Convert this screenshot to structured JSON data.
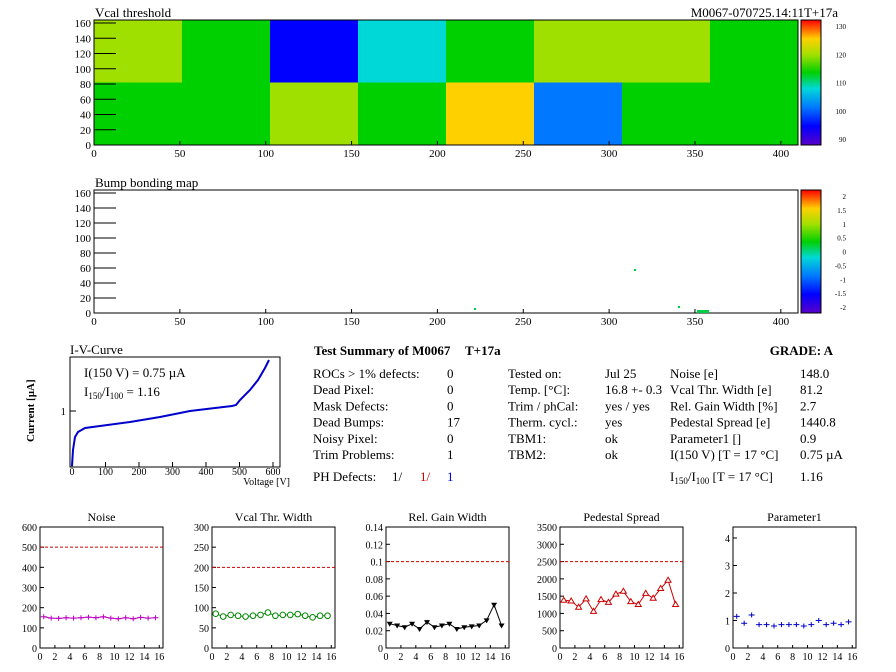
{
  "header": {
    "title": "Vcal threshold",
    "module_id": "M0067-070725.14:11T+17a"
  },
  "vcal_map": {
    "title": "Vcal threshold",
    "y_ticks": [
      "0",
      "20",
      "40",
      "60",
      "80",
      "100",
      "120",
      "140",
      "160"
    ],
    "x_ticks": [
      "0",
      "50",
      "100",
      "150",
      "200",
      "250",
      "300",
      "350",
      "400"
    ],
    "palette_ticks": [
      "90",
      "100",
      "110",
      "120",
      "130"
    ],
    "blocks_top": [
      120,
      112,
      95,
      108,
      114,
      116,
      118,
      114
    ],
    "blocks_bottom": [
      112,
      114,
      120,
      114,
      124,
      96,
      112,
      112
    ]
  },
  "bump_map": {
    "title": "Bump bonding map",
    "y_ticks": [
      "0",
      "20",
      "40",
      "60",
      "80",
      "100",
      "120",
      "140",
      "160"
    ],
    "x_ticks": [
      "0",
      "50",
      "100",
      "150",
      "200",
      "250",
      "300",
      "350",
      "400"
    ],
    "palette_ticks": [
      "2",
      "1.5",
      "1",
      "0.5",
      "0",
      "-0.5",
      "-1",
      "-1.5",
      "-2"
    ]
  },
  "iv_curve": {
    "title": "I-V-Curve",
    "line1": "I(150 V) = 0.75 µA",
    "line2": "I",
    "line2_sub1": "150",
    "line2_mid": "/I",
    "line2_sub2": "100",
    "line2_end": " =  1.16",
    "ylabel": "Current [µA]",
    "xlabel": "Voltage [V]",
    "y_tick": "1",
    "x_ticks": [
      "0",
      "100",
      "200",
      "300",
      "400",
      "500",
      "600"
    ]
  },
  "summary": {
    "title": "Test Summary of M0067",
    "tag": "T+17a",
    "grade_label": "GRADE:  A",
    "left": [
      {
        "label": "ROCs > 1% defects:",
        "value": "0"
      },
      {
        "label": "Dead Pixel:",
        "value": "0"
      },
      {
        "label": "Mask Defects:",
        "value": "0"
      },
      {
        "label": "Dead Bumps:",
        "value": "17"
      },
      {
        "label": "Noisy Pixel:",
        "value": "0"
      },
      {
        "label": "Trim Problems:",
        "value": "1"
      }
    ],
    "ph_label": "PH Defects:",
    "ph_values": [
      "1/",
      "1/",
      "1"
    ],
    "middle": [
      {
        "label": "Tested on:",
        "value": "Jul 25"
      },
      {
        "label": "Temp. [°C]:",
        "value": "16.8 +- 0.3"
      },
      {
        "label": "Trim / phCal:",
        "value": "yes / yes"
      },
      {
        "label": "Therm. cycl.:",
        "value": "yes"
      },
      {
        "label": "TBM1:",
        "value": "ok"
      },
      {
        "label": "TBM2:",
        "value": "ok"
      }
    ],
    "right": [
      {
        "label": "Noise [e]",
        "value": "148.0"
      },
      {
        "label": "Vcal Thr. Width [e]",
        "value": "81.2"
      },
      {
        "label": "Rel. Gain Width [%]",
        "value": "2.7"
      },
      {
        "label": "Pedestal Spread [e]",
        "value": "1440.8"
      },
      {
        "label": "Parameter1 []",
        "value": "0.9"
      },
      {
        "label": "I(150 V)  [T = 17 °C]",
        "value": "0.75 µA"
      }
    ],
    "ratio_row": {
      "pre": "I",
      "sub1": "150",
      "mid": "/I",
      "sub2": "100",
      "post": "  [T = 17 °C]",
      "value": "1.16"
    }
  },
  "chart_data": [
    {
      "type": "line",
      "title": "Noise",
      "x": [
        0,
        1,
        2,
        3,
        4,
        5,
        6,
        7,
        8,
        9,
        10,
        11,
        12,
        13,
        14,
        15
      ],
      "values": [
        155,
        148,
        147,
        150,
        148,
        150,
        153,
        150,
        155,
        148,
        145,
        150,
        145,
        152,
        148,
        150
      ],
      "ylim": [
        0,
        600
      ],
      "y_ticks": [
        0,
        100,
        200,
        300,
        400,
        500,
        600
      ],
      "threshold": 500,
      "color": "#c000c0",
      "marker": "cross",
      "x_ticks": [
        "0",
        "2",
        "4",
        "6",
        "8",
        "10",
        "12",
        "14",
        "16"
      ]
    },
    {
      "type": "line",
      "title": "Vcal Thr. Width",
      "x": [
        0,
        1,
        2,
        3,
        4,
        5,
        6,
        7,
        8,
        9,
        10,
        11,
        12,
        13,
        14,
        15
      ],
      "values": [
        85,
        78,
        82,
        80,
        78,
        80,
        82,
        88,
        80,
        82,
        82,
        84,
        80,
        76,
        80,
        80
      ],
      "ylim": [
        0,
        300
      ],
      "y_ticks": [
        0,
        50,
        100,
        150,
        200,
        250,
        300
      ],
      "threshold": 200,
      "color": "#008800",
      "marker": "circle",
      "x_ticks": [
        "0",
        "2",
        "4",
        "6",
        "8",
        "10",
        "12",
        "14",
        "16"
      ]
    },
    {
      "type": "line",
      "title": "Rel. Gain Width",
      "x": [
        0,
        1,
        2,
        3,
        4,
        5,
        6,
        7,
        8,
        9,
        10,
        11,
        12,
        13,
        14,
        15
      ],
      "values": [
        0.028,
        0.026,
        0.024,
        0.028,
        0.022,
        0.03,
        0.024,
        0.026,
        0.028,
        0.022,
        0.024,
        0.025,
        0.026,
        0.032,
        0.05,
        0.026
      ],
      "ylim": [
        0,
        0.14
      ],
      "y_ticks": [
        0,
        0.02,
        0.04,
        0.06,
        0.08,
        0.1,
        0.12,
        0.14
      ],
      "threshold": 0.1,
      "color": "#000000",
      "marker": "triangle-down",
      "x_ticks": [
        "0",
        "2",
        "4",
        "6",
        "8",
        "10",
        "12",
        "14",
        "16"
      ]
    },
    {
      "type": "line",
      "title": "Pedestal Spread",
      "x": [
        0,
        1,
        2,
        3,
        4,
        5,
        6,
        7,
        8,
        9,
        10,
        11,
        12,
        13,
        14,
        15
      ],
      "values": [
        1380,
        1360,
        1180,
        1420,
        1060,
        1400,
        1320,
        1560,
        1640,
        1340,
        1260,
        1580,
        1440,
        1720,
        1960,
        1260
      ],
      "ylim": [
        0,
        3500
      ],
      "y_ticks": [
        0,
        500,
        1000,
        1500,
        2000,
        2500,
        3000,
        3500
      ],
      "threshold": 2500,
      "color": "#cc0000",
      "marker": "triangle-up",
      "x_ticks": [
        "0",
        "2",
        "4",
        "6",
        "8",
        "10",
        "12",
        "14",
        "16"
      ]
    },
    {
      "type": "scatter",
      "title": "Parameter1",
      "x": [
        0,
        1,
        2,
        3,
        4,
        5,
        6,
        7,
        8,
        9,
        10,
        11,
        12,
        13,
        14,
        15
      ],
      "values": [
        1.15,
        0.9,
        1.2,
        0.85,
        0.85,
        0.8,
        0.85,
        0.85,
        0.85,
        0.8,
        0.85,
        1.0,
        0.85,
        0.9,
        0.85,
        0.95
      ],
      "ylim": [
        0,
        4.4
      ],
      "y_ticks": [
        0,
        1,
        2,
        3,
        4
      ],
      "threshold": null,
      "color": "#0000cc",
      "marker": "cross",
      "x_ticks": [
        "0",
        "2",
        "4",
        "6",
        "8",
        "10",
        "12",
        "14",
        "16"
      ]
    }
  ]
}
